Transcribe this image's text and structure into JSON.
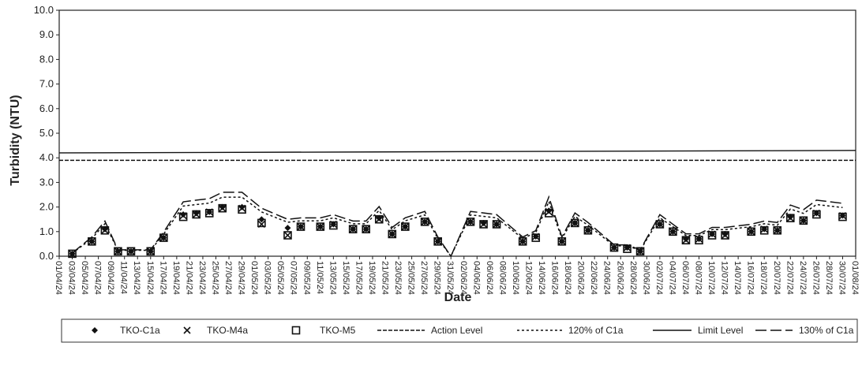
{
  "chart_data": {
    "type": "line",
    "y_label": "Turbidity (NTU)",
    "x_label": "Date",
    "ylim": [
      0,
      10
    ],
    "xlim": [
      0,
      122
    ],
    "yticks": [
      {
        "value": 0,
        "label": "0.0"
      },
      {
        "value": 1,
        "label": "1.0"
      },
      {
        "value": 2,
        "label": "2.0"
      },
      {
        "value": 3,
        "label": "3.0"
      },
      {
        "value": 4,
        "label": "4.0"
      },
      {
        "value": 5,
        "label": "5.0"
      },
      {
        "value": 6,
        "label": "6.0"
      },
      {
        "value": 7,
        "label": "7.0"
      },
      {
        "value": 8,
        "label": "8.0"
      },
      {
        "value": 9,
        "label": "9.0"
      },
      {
        "value": 10,
        "label": "10.0"
      }
    ],
    "xticks": [
      {
        "value": 0,
        "label": "01/04/24"
      },
      {
        "value": 2,
        "label": "03/04/24"
      },
      {
        "value": 4,
        "label": "05/04/24"
      },
      {
        "value": 6,
        "label": "07/04/24"
      },
      {
        "value": 8,
        "label": "09/04/24"
      },
      {
        "value": 10,
        "label": "11/04/24"
      },
      {
        "value": 12,
        "label": "13/04/24"
      },
      {
        "value": 14,
        "label": "15/04/24"
      },
      {
        "value": 16,
        "label": "17/04/24"
      },
      {
        "value": 18,
        "label": "19/04/24"
      },
      {
        "value": 20,
        "label": "21/04/24"
      },
      {
        "value": 22,
        "label": "23/04/24"
      },
      {
        "value": 24,
        "label": "25/04/24"
      },
      {
        "value": 26,
        "label": "27/04/24"
      },
      {
        "value": 28,
        "label": "29/04/24"
      },
      {
        "value": 30,
        "label": "01/05/24"
      },
      {
        "value": 32,
        "label": "03/05/24"
      },
      {
        "value": 34,
        "label": "05/05/24"
      },
      {
        "value": 36,
        "label": "07/05/24"
      },
      {
        "value": 38,
        "label": "09/05/24"
      },
      {
        "value": 40,
        "label": "11/05/24"
      },
      {
        "value": 42,
        "label": "13/05/24"
      },
      {
        "value": 44,
        "label": "15/05/24"
      },
      {
        "value": 46,
        "label": "17/05/24"
      },
      {
        "value": 48,
        "label": "19/05/24"
      },
      {
        "value": 50,
        "label": "21/05/24"
      },
      {
        "value": 52,
        "label": "23/05/24"
      },
      {
        "value": 54,
        "label": "25/05/24"
      },
      {
        "value": 56,
        "label": "27/05/24"
      },
      {
        "value": 58,
        "label": "29/05/24"
      },
      {
        "value": 60,
        "label": "31/05/24"
      },
      {
        "value": 62,
        "label": "02/06/24"
      },
      {
        "value": 64,
        "label": "04/06/24"
      },
      {
        "value": 66,
        "label": "06/06/24"
      },
      {
        "value": 68,
        "label": "08/06/24"
      },
      {
        "value": 70,
        "label": "10/06/24"
      },
      {
        "value": 72,
        "label": "12/06/24"
      },
      {
        "value": 74,
        "label": "14/06/24"
      },
      {
        "value": 76,
        "label": "16/06/24"
      },
      {
        "value": 78,
        "label": "18/06/24"
      },
      {
        "value": 80,
        "label": "20/06/24"
      },
      {
        "value": 82,
        "label": "22/06/24"
      },
      {
        "value": 84,
        "label": "24/06/24"
      },
      {
        "value": 86,
        "label": "26/06/24"
      },
      {
        "value": 88,
        "label": "28/06/24"
      },
      {
        "value": 90,
        "label": "30/06/24"
      },
      {
        "value": 92,
        "label": "02/07/24"
      },
      {
        "value": 94,
        "label": "04/07/24"
      },
      {
        "value": 96,
        "label": "06/07/24"
      },
      {
        "value": 98,
        "label": "08/07/24"
      },
      {
        "value": 100,
        "label": "10/07/24"
      },
      {
        "value": 102,
        "label": "12/07/24"
      },
      {
        "value": 104,
        "label": "14/07/24"
      },
      {
        "value": 106,
        "label": "16/07/24"
      },
      {
        "value": 108,
        "label": "18/07/24"
      },
      {
        "value": 110,
        "label": "20/07/24"
      },
      {
        "value": 112,
        "label": "22/07/24"
      },
      {
        "value": 114,
        "label": "24/07/24"
      },
      {
        "value": 116,
        "label": "26/07/24"
      },
      {
        "value": 118,
        "label": "28/07/24"
      },
      {
        "value": 120,
        "label": "30/07/24"
      },
      {
        "value": 122,
        "label": "01/08/24"
      }
    ],
    "x": [
      2,
      5,
      7,
      9,
      11,
      14,
      16,
      19,
      21,
      23,
      25,
      28,
      31,
      35,
      37,
      40,
      42,
      45,
      47,
      49,
      51,
      53,
      56,
      58,
      60,
      63,
      65,
      67,
      71,
      73,
      75,
      77,
      79,
      81,
      85,
      87,
      89,
      92,
      94,
      96,
      98,
      100,
      102,
      106,
      108,
      110,
      112,
      114,
      116,
      120
    ],
    "series": [
      {
        "name": "TKO-C1a",
        "color": "#111111",
        "marker": "diamond",
        "values": [
          0.1,
          0.6,
          1.1,
          0.2,
          0.2,
          0.2,
          0.75,
          1.7,
          1.75,
          1.8,
          2.0,
          2.0,
          1.5,
          1.15,
          1.2,
          1.2,
          1.3,
          1.1,
          1.1,
          1.55,
          0.9,
          1.2,
          1.4,
          0.6,
          null,
          1.4,
          1.35,
          1.3,
          0.6,
          0.8,
          1.85,
          0.6,
          1.35,
          1.05,
          0.35,
          0.35,
          0.2,
          1.3,
          1.0,
          0.7,
          0.7,
          0.9,
          0.9,
          1.0,
          1.1,
          1.05,
          1.6,
          1.45,
          1.75,
          1.65
        ]
      },
      {
        "name": "TKO-M4a",
        "color": "#111111",
        "marker": "cross",
        "values": [
          0.1,
          0.6,
          1.05,
          0.2,
          0.2,
          0.2,
          0.75,
          1.65,
          1.7,
          1.8,
          1.95,
          1.95,
          1.3,
          0.85,
          1.2,
          1.2,
          1.3,
          1.1,
          1.1,
          1.5,
          0.9,
          1.2,
          1.4,
          0.6,
          null,
          1.4,
          1.3,
          1.3,
          0.6,
          0.8,
          1.8,
          0.6,
          1.35,
          1.05,
          0.35,
          0.35,
          0.2,
          1.3,
          1.0,
          0.65,
          0.7,
          0.9,
          0.85,
          1.0,
          1.1,
          1.05,
          1.55,
          1.45,
          1.75,
          1.65
        ]
      },
      {
        "name": "TKO-M5",
        "color": "#111111",
        "marker": "square",
        "values": [
          0.1,
          0.6,
          1.05,
          0.2,
          0.2,
          0.2,
          0.75,
          1.6,
          1.7,
          1.75,
          1.95,
          1.9,
          1.35,
          0.85,
          1.2,
          1.2,
          1.25,
          1.1,
          1.1,
          1.5,
          0.9,
          1.2,
          1.4,
          0.6,
          null,
          1.4,
          1.3,
          1.3,
          0.6,
          0.75,
          1.75,
          0.6,
          1.35,
          1.05,
          0.35,
          0.3,
          0.2,
          1.3,
          1.0,
          0.65,
          0.65,
          0.85,
          0.85,
          1.0,
          1.05,
          1.05,
          1.55,
          1.45,
          1.7,
          1.6
        ]
      },
      {
        "name": "Action Level",
        "color": "#111111",
        "line_style": "dashed",
        "x": [
          0,
          122
        ],
        "values": [
          3.9,
          3.9
        ]
      },
      {
        "name": "120% of C1a",
        "color": "#111111",
        "line_style": "dotted",
        "values": [
          0.12,
          0.72,
          1.32,
          0.24,
          0.24,
          0.24,
          0.9,
          2.04,
          2.1,
          2.16,
          2.4,
          2.4,
          1.8,
          1.38,
          1.44,
          1.44,
          1.56,
          1.32,
          1.32,
          1.86,
          1.08,
          1.44,
          1.68,
          0.72,
          0,
          1.68,
          1.62,
          1.56,
          0.72,
          0.96,
          2.22,
          0.72,
          1.62,
          1.26,
          0.42,
          0.42,
          0.24,
          1.56,
          1.2,
          0.84,
          0.84,
          1.08,
          1.08,
          1.2,
          1.32,
          1.26,
          1.92,
          1.74,
          2.1,
          1.98
        ]
      },
      {
        "name": "Limit Level",
        "color": "#111111",
        "line_style": "solid",
        "x": [
          0,
          122
        ],
        "values": [
          4.2,
          4.3
        ]
      },
      {
        "name": "130% of C1a",
        "color": "#111111",
        "line_style": "long-dash",
        "values": [
          0.13,
          0.78,
          1.43,
          0.26,
          0.26,
          0.26,
          0.98,
          2.21,
          2.28,
          2.34,
          2.6,
          2.6,
          1.95,
          1.5,
          1.56,
          1.56,
          1.69,
          1.43,
          1.43,
          2.02,
          1.17,
          1.56,
          1.82,
          0.78,
          0,
          1.82,
          1.76,
          1.69,
          0.78,
          1.04,
          2.41,
          0.78,
          1.76,
          1.37,
          0.46,
          0.46,
          0.26,
          1.69,
          1.3,
          0.91,
          0.91,
          1.17,
          1.17,
          1.3,
          1.43,
          1.37,
          2.08,
          1.89,
          2.28,
          2.15
        ]
      }
    ]
  }
}
